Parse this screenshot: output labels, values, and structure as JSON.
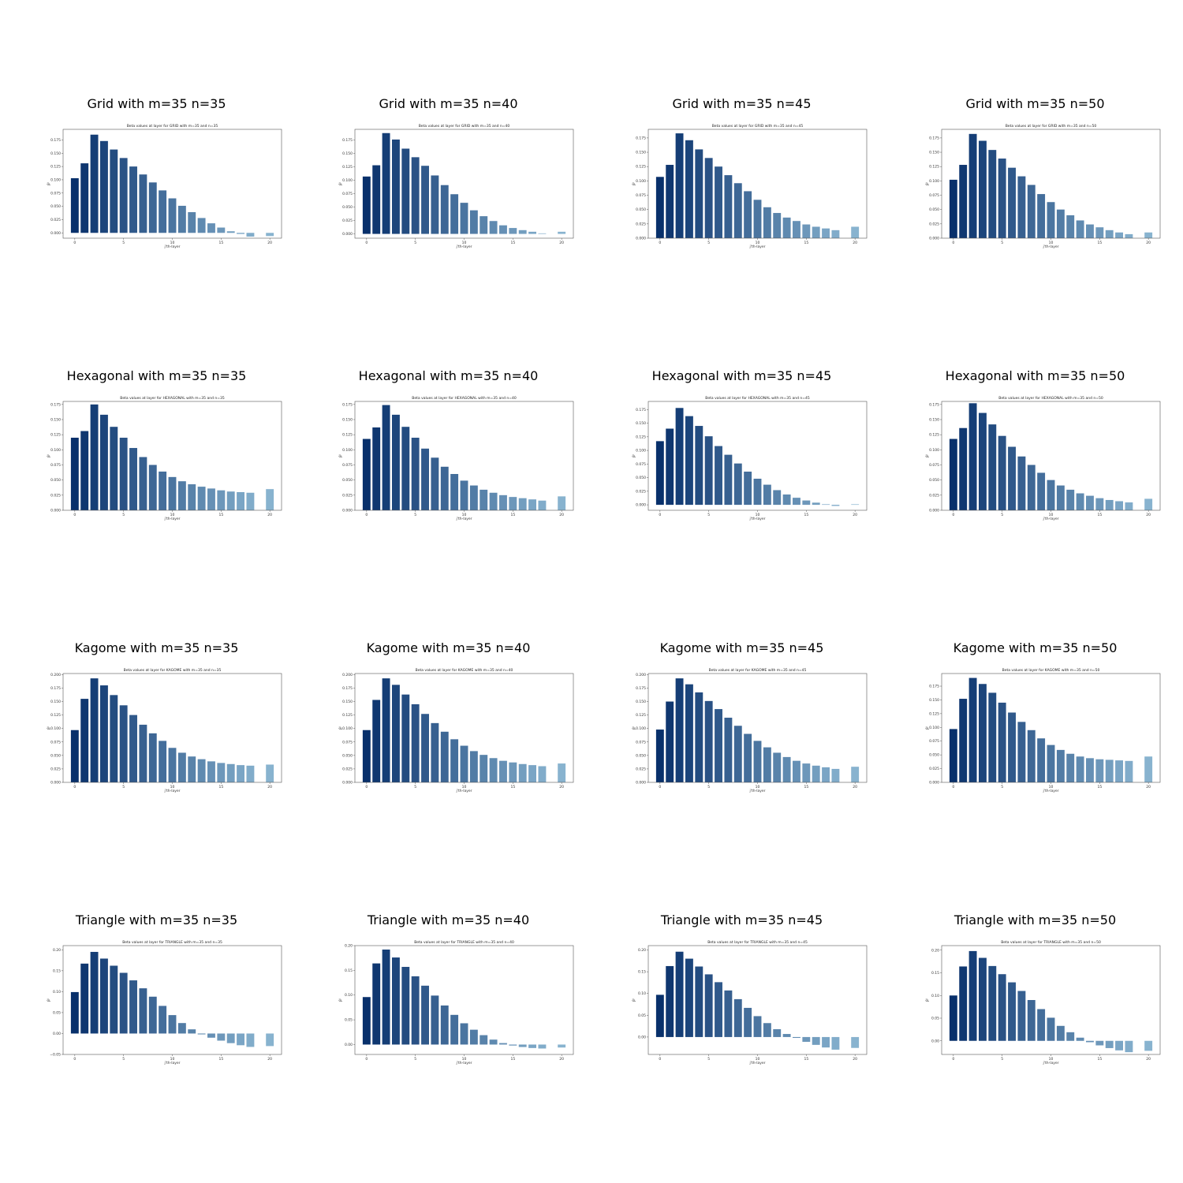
{
  "chart_data": [
    {
      "type": "bar",
      "title": "Grid with m=35 n=35",
      "subtitle": "Beta values at layer for GRID with m=35 and n=35",
      "xlabel": "j'th-layer",
      "ylabel": "βʲ",
      "ylim": [
        -0.01,
        0.195
      ],
      "yticks": [
        "0.000",
        "0.025",
        "0.050",
        "0.075",
        "0.100",
        "0.125",
        "0.150",
        "0.175"
      ],
      "yticks_v": [
        0,
        0.025,
        0.05,
        0.075,
        0.1,
        0.125,
        0.15,
        0.175
      ],
      "xticks": [
        "0",
        "5",
        "10",
        "15",
        "20"
      ],
      "x": [
        0,
        1,
        2,
        3,
        4,
        5,
        6,
        7,
        8,
        9,
        10,
        11,
        12,
        13,
        14,
        15,
        16,
        17,
        18,
        20
      ],
      "values": [
        0.103,
        0.131,
        0.185,
        0.173,
        0.157,
        0.141,
        0.125,
        0.11,
        0.095,
        0.08,
        0.065,
        0.051,
        0.039,
        0.028,
        0.018,
        0.01,
        0.003,
        -0.002,
        -0.007,
        -0.006
      ]
    },
    {
      "type": "bar",
      "title": "Grid with m=35 n=40",
      "subtitle": "Beta values at layer for GRID with m=35 and n=40",
      "xlabel": "j'th-layer",
      "ylabel": "βʲ",
      "ylim": [
        -0.008,
        0.195
      ],
      "yticks": [
        "0.000",
        "0.025",
        "0.050",
        "0.075",
        "0.100",
        "0.125",
        "0.150",
        "0.175"
      ],
      "yticks_v": [
        0,
        0.025,
        0.05,
        0.075,
        0.1,
        0.125,
        0.15,
        0.175
      ],
      "xticks": [
        "0",
        "5",
        "10",
        "15",
        "20"
      ],
      "x": [
        0,
        1,
        2,
        3,
        4,
        5,
        6,
        7,
        8,
        9,
        10,
        11,
        12,
        13,
        14,
        15,
        16,
        17,
        18,
        20
      ],
      "values": [
        0.107,
        0.128,
        0.188,
        0.176,
        0.159,
        0.143,
        0.127,
        0.109,
        0.091,
        0.074,
        0.058,
        0.044,
        0.033,
        0.024,
        0.016,
        0.011,
        0.007,
        0.004,
        0.001,
        0.004
      ]
    },
    {
      "type": "bar",
      "title": "Grid with m=35 n=45",
      "subtitle": "Beta values at layer for GRID with m=35 and n=45",
      "xlabel": "j'th-layer",
      "ylabel": "βʲ",
      "ylim": [
        0,
        0.19
      ],
      "yticks": [
        "0.000",
        "0.025",
        "0.050",
        "0.075",
        "0.100",
        "0.125",
        "0.150",
        "0.175"
      ],
      "yticks_v": [
        0,
        0.025,
        0.05,
        0.075,
        0.1,
        0.125,
        0.15,
        0.175
      ],
      "xticks": [
        "0",
        "5",
        "10",
        "15",
        "20"
      ],
      "x": [
        0,
        1,
        2,
        3,
        4,
        5,
        6,
        7,
        8,
        9,
        10,
        11,
        12,
        13,
        14,
        15,
        16,
        17,
        18,
        20
      ],
      "values": [
        0.107,
        0.128,
        0.183,
        0.171,
        0.155,
        0.14,
        0.125,
        0.11,
        0.096,
        0.082,
        0.067,
        0.054,
        0.044,
        0.036,
        0.03,
        0.024,
        0.02,
        0.017,
        0.014,
        0.02
      ]
    },
    {
      "type": "bar",
      "title": "Grid with m=35 n=50",
      "subtitle": "Beta values at layer for GRID with m=35 and n=50",
      "xlabel": "j'th-layer",
      "ylabel": "βʲ",
      "ylim": [
        0,
        0.19
      ],
      "yticks": [
        "0.000",
        "0.025",
        "0.050",
        "0.075",
        "0.100",
        "0.125",
        "0.150",
        "0.175"
      ],
      "yticks_v": [
        0,
        0.025,
        0.05,
        0.075,
        0.1,
        0.125,
        0.15,
        0.175
      ],
      "xticks": [
        "0",
        "5",
        "10",
        "15",
        "20"
      ],
      "x": [
        0,
        1,
        2,
        3,
        4,
        5,
        6,
        7,
        8,
        9,
        10,
        11,
        12,
        13,
        14,
        15,
        16,
        17,
        18,
        20
      ],
      "values": [
        0.102,
        0.128,
        0.182,
        0.17,
        0.154,
        0.139,
        0.123,
        0.108,
        0.093,
        0.077,
        0.063,
        0.05,
        0.04,
        0.031,
        0.024,
        0.019,
        0.014,
        0.01,
        0.007,
        0.01
      ]
    },
    {
      "type": "bar",
      "title": "Hexagonal with m=35 n=35",
      "subtitle": "Beta values at layer for HEXAGONAL with m=35 and n=35",
      "xlabel": "j'th-layer",
      "ylabel": "βʲ",
      "ylim": [
        0,
        0.18
      ],
      "yticks": [
        "0.000",
        "0.025",
        "0.050",
        "0.075",
        "0.100",
        "0.125",
        "0.150",
        "0.175"
      ],
      "yticks_v": [
        0,
        0.025,
        0.05,
        0.075,
        0.1,
        0.125,
        0.15,
        0.175
      ],
      "xticks": [
        "0",
        "5",
        "10",
        "15",
        "20"
      ],
      "x": [
        0,
        1,
        2,
        3,
        4,
        5,
        6,
        7,
        8,
        9,
        10,
        11,
        12,
        13,
        14,
        15,
        16,
        17,
        18,
        20
      ],
      "values": [
        0.12,
        0.131,
        0.175,
        0.158,
        0.138,
        0.12,
        0.103,
        0.088,
        0.075,
        0.064,
        0.055,
        0.048,
        0.043,
        0.039,
        0.036,
        0.033,
        0.031,
        0.03,
        0.029,
        0.035
      ]
    },
    {
      "type": "bar",
      "title": "Hexagonal with m=35 n=40",
      "subtitle": "Beta values at layer for HEXAGONAL with m=35 and n=40",
      "xlabel": "j'th-layer",
      "ylabel": "βʲ",
      "ylim": [
        0,
        0.18
      ],
      "yticks": [
        "0.000",
        "0.025",
        "0.050",
        "0.075",
        "0.100",
        "0.125",
        "0.150",
        "0.175"
      ],
      "yticks_v": [
        0,
        0.025,
        0.05,
        0.075,
        0.1,
        0.125,
        0.15,
        0.175
      ],
      "xticks": [
        "0",
        "5",
        "10",
        "15",
        "20"
      ],
      "x": [
        0,
        1,
        2,
        3,
        4,
        5,
        6,
        7,
        8,
        9,
        10,
        11,
        12,
        13,
        14,
        15,
        16,
        17,
        18,
        20
      ],
      "values": [
        0.118,
        0.137,
        0.174,
        0.158,
        0.138,
        0.12,
        0.102,
        0.087,
        0.072,
        0.06,
        0.049,
        0.041,
        0.034,
        0.029,
        0.025,
        0.022,
        0.02,
        0.018,
        0.016,
        0.023
      ]
    },
    {
      "type": "bar",
      "title": "Hexagonal with m=35 n=45",
      "subtitle": "Beta values at layer for HEXAGONAL with m=35 and n=45",
      "xlabel": "j'th-layer",
      "ylabel": "βʲ",
      "ylim": [
        -0.01,
        0.19
      ],
      "yticks": [
        "0.000",
        "0.025",
        "0.050",
        "0.075",
        "0.100",
        "0.125",
        "0.150",
        "0.175"
      ],
      "yticks_v": [
        0,
        0.025,
        0.05,
        0.075,
        0.1,
        0.125,
        0.15,
        0.175
      ],
      "xticks": [
        "0",
        "5",
        "10",
        "15",
        "20"
      ],
      "x": [
        0,
        1,
        2,
        3,
        4,
        5,
        6,
        7,
        8,
        9,
        10,
        11,
        12,
        13,
        14,
        15,
        16,
        17,
        18,
        20
      ],
      "values": [
        0.117,
        0.14,
        0.178,
        0.163,
        0.145,
        0.126,
        0.108,
        0.092,
        0.076,
        0.061,
        0.048,
        0.037,
        0.027,
        0.019,
        0.013,
        0.008,
        0.004,
        0.001,
        -0.002,
        0.001
      ]
    },
    {
      "type": "bar",
      "title": "Hexagonal with m=35 n=50",
      "subtitle": "Beta values at layer for HEXAGONAL with m=35 and n=50",
      "xlabel": "j'th-layer",
      "ylabel": "βʲ",
      "ylim": [
        0,
        0.18
      ],
      "yticks": [
        "0.000",
        "0.025",
        "0.050",
        "0.075",
        "0.100",
        "0.125",
        "0.150",
        "0.175"
      ],
      "yticks_v": [
        0,
        0.025,
        0.05,
        0.075,
        0.1,
        0.125,
        0.15,
        0.175
      ],
      "xticks": [
        "0",
        "5",
        "10",
        "15",
        "20"
      ],
      "x": [
        0,
        1,
        2,
        3,
        4,
        5,
        6,
        7,
        8,
        9,
        10,
        11,
        12,
        13,
        14,
        15,
        16,
        17,
        18,
        20
      ],
      "values": [
        0.118,
        0.136,
        0.177,
        0.161,
        0.142,
        0.123,
        0.105,
        0.089,
        0.075,
        0.062,
        0.05,
        0.041,
        0.034,
        0.028,
        0.024,
        0.02,
        0.017,
        0.015,
        0.013,
        0.019
      ]
    },
    {
      "type": "bar",
      "title": "Kagome with m=35 n=35",
      "subtitle": "Beta values at layer for KAGOME with m=35 and n=35",
      "xlabel": "j'th-layer",
      "ylabel": "βʲ",
      "ylim": [
        0,
        0.202
      ],
      "yticks": [
        "0.000",
        "0.025",
        "0.050",
        "0.075",
        "0.100",
        "0.125",
        "0.150",
        "0.175",
        "0.200"
      ],
      "yticks_v": [
        0,
        0.025,
        0.05,
        0.075,
        0.1,
        0.125,
        0.15,
        0.175,
        0.2
      ],
      "xticks": [
        "0",
        "5",
        "10",
        "15",
        "20"
      ],
      "x": [
        0,
        1,
        2,
        3,
        4,
        5,
        6,
        7,
        8,
        9,
        10,
        11,
        12,
        13,
        14,
        15,
        16,
        17,
        18,
        20
      ],
      "values": [
        0.097,
        0.155,
        0.193,
        0.18,
        0.162,
        0.143,
        0.125,
        0.107,
        0.091,
        0.077,
        0.064,
        0.055,
        0.048,
        0.043,
        0.039,
        0.036,
        0.034,
        0.032,
        0.031,
        0.033
      ]
    },
    {
      "type": "bar",
      "title": "Kagome with m=35 n=40",
      "subtitle": "Beta values at layer for KAGOME with m=35 and n=40",
      "xlabel": "j'th-layer",
      "ylabel": "βʲ",
      "ylim": [
        0,
        0.202
      ],
      "yticks": [
        "0.000",
        "0.025",
        "0.050",
        "0.075",
        "0.100",
        "0.125",
        "0.150",
        "0.175",
        "0.200"
      ],
      "yticks_v": [
        0,
        0.025,
        0.05,
        0.075,
        0.1,
        0.125,
        0.15,
        0.175,
        0.2
      ],
      "xticks": [
        "0",
        "5",
        "10",
        "15",
        "20"
      ],
      "x": [
        0,
        1,
        2,
        3,
        4,
        5,
        6,
        7,
        8,
        9,
        10,
        11,
        12,
        13,
        14,
        15,
        16,
        17,
        18,
        20
      ],
      "values": [
        0.097,
        0.153,
        0.193,
        0.181,
        0.163,
        0.145,
        0.127,
        0.11,
        0.094,
        0.08,
        0.068,
        0.058,
        0.051,
        0.045,
        0.04,
        0.037,
        0.034,
        0.032,
        0.03,
        0.035
      ]
    },
    {
      "type": "bar",
      "title": "Kagome with m=35 n=45",
      "subtitle": "Beta values at layer for KAGOME with m=35 and n=45",
      "xlabel": "j'th-layer",
      "ylabel": "βʲ",
      "ylim": [
        0,
        0.202
      ],
      "yticks": [
        "0.000",
        "0.025",
        "0.050",
        "0.075",
        "0.100",
        "0.125",
        "0.150",
        "0.175",
        "0.200"
      ],
      "yticks_v": [
        0,
        0.025,
        0.05,
        0.075,
        0.1,
        0.125,
        0.15,
        0.175,
        0.2
      ],
      "xticks": [
        "0",
        "5",
        "10",
        "15",
        "20"
      ],
      "x": [
        0,
        1,
        2,
        3,
        4,
        5,
        6,
        7,
        8,
        9,
        10,
        11,
        12,
        13,
        14,
        15,
        16,
        17,
        18,
        20
      ],
      "values": [
        0.098,
        0.15,
        0.193,
        0.182,
        0.167,
        0.151,
        0.136,
        0.12,
        0.105,
        0.09,
        0.077,
        0.065,
        0.055,
        0.047,
        0.04,
        0.035,
        0.031,
        0.028,
        0.025,
        0.029
      ]
    },
    {
      "type": "bar",
      "title": "Kagome with m=35 n=50",
      "subtitle": "Beta values at layer for KAGOME with m=35 and n=50",
      "xlabel": "j'th-layer",
      "ylabel": "βʲ",
      "ylim": [
        0,
        0.198
      ],
      "yticks": [
        "0.000",
        "0.025",
        "0.050",
        "0.075",
        "0.100",
        "0.125",
        "0.150",
        "0.175"
      ],
      "yticks_v": [
        0,
        0.025,
        0.05,
        0.075,
        0.1,
        0.125,
        0.15,
        0.175
      ],
      "xticks": [
        "0",
        "5",
        "10",
        "15",
        "20"
      ],
      "x": [
        0,
        1,
        2,
        3,
        4,
        5,
        6,
        7,
        8,
        9,
        10,
        11,
        12,
        13,
        14,
        15,
        16,
        17,
        18,
        20
      ],
      "values": [
        0.097,
        0.152,
        0.19,
        0.179,
        0.163,
        0.145,
        0.127,
        0.11,
        0.095,
        0.08,
        0.068,
        0.059,
        0.052,
        0.047,
        0.044,
        0.042,
        0.041,
        0.04,
        0.039,
        0.047
      ]
    },
    {
      "type": "bar",
      "title": "Triangle with m=35 n=35",
      "subtitle": "Beta values at layer for TRIANGLE with m=35 and n=35",
      "xlabel": "j'th-layer",
      "ylabel": "βʲ",
      "ylim": [
        -0.05,
        0.21
      ],
      "yticks": [
        "−0.05",
        "0.00",
        "0.05",
        "0.10",
        "0.15",
        "0.20"
      ],
      "yticks_v": [
        -0.05,
        0,
        0.05,
        0.1,
        0.15,
        0.2
      ],
      "xticks": [
        "0",
        "5",
        "10",
        "15",
        "20"
      ],
      "x": [
        0,
        1,
        2,
        3,
        4,
        5,
        6,
        7,
        8,
        9,
        10,
        11,
        12,
        13,
        14,
        15,
        16,
        17,
        18,
        20
      ],
      "values": [
        0.099,
        0.167,
        0.195,
        0.179,
        0.162,
        0.145,
        0.127,
        0.108,
        0.088,
        0.066,
        0.044,
        0.025,
        0.01,
        -0.002,
        -0.01,
        -0.017,
        -0.023,
        -0.028,
        -0.032,
        -0.03
      ]
    },
    {
      "type": "bar",
      "title": "Triangle with m=35 n=40",
      "subtitle": "Beta values at layer for TRIANGLE with m=35 and n=40",
      "xlabel": "j'th-layer",
      "ylabel": "βʲ",
      "ylim": [
        -0.02,
        0.2
      ],
      "yticks": [
        "0.00",
        "0.05",
        "0.10",
        "0.15",
        "0.20"
      ],
      "yticks_v": [
        0,
        0.05,
        0.1,
        0.15,
        0.2
      ],
      "xticks": [
        "0",
        "5",
        "10",
        "15",
        "20"
      ],
      "x": [
        0,
        1,
        2,
        3,
        4,
        5,
        6,
        7,
        8,
        9,
        10,
        11,
        12,
        13,
        14,
        15,
        16,
        17,
        18,
        20
      ],
      "values": [
        0.096,
        0.164,
        0.192,
        0.176,
        0.157,
        0.138,
        0.119,
        0.099,
        0.079,
        0.06,
        0.043,
        0.03,
        0.019,
        0.01,
        0.003,
        -0.002,
        -0.005,
        -0.007,
        -0.008,
        -0.006
      ]
    },
    {
      "type": "bar",
      "title": "Triangle with m=35 n=45",
      "subtitle": "Beta values at layer for TRIANGLE with m=35 and n=45",
      "xlabel": "j'th-layer",
      "ylabel": "βʲ",
      "ylim": [
        -0.04,
        0.21
      ],
      "yticks": [
        "0.00",
        "0.05",
        "0.10",
        "0.15",
        "0.20"
      ],
      "yticks_v": [
        0,
        0.05,
        0.1,
        0.15,
        0.2
      ],
      "xticks": [
        "0",
        "5",
        "10",
        "15",
        "20"
      ],
      "x": [
        0,
        1,
        2,
        3,
        4,
        5,
        6,
        7,
        8,
        9,
        10,
        11,
        12,
        13,
        14,
        15,
        16,
        17,
        18,
        20
      ],
      "values": [
        0.097,
        0.163,
        0.196,
        0.18,
        0.162,
        0.144,
        0.126,
        0.107,
        0.087,
        0.067,
        0.048,
        0.032,
        0.018,
        0.007,
        -0.002,
        -0.011,
        -0.018,
        -0.024,
        -0.029,
        -0.025
      ]
    },
    {
      "type": "bar",
      "title": "Triangle with m=35 n=50",
      "subtitle": "Beta values at layer for TRIANGLE with m=35 and n=50",
      "xlabel": "j'th-layer",
      "ylabel": "βʲ",
      "ylim": [
        -0.03,
        0.21
      ],
      "yticks": [
        "0.00",
        "0.05",
        "0.10",
        "0.15",
        "0.20"
      ],
      "yticks_v": [
        0,
        0.05,
        0.1,
        0.15,
        0.2
      ],
      "xticks": [
        "0",
        "5",
        "10",
        "15",
        "20"
      ],
      "x": [
        0,
        1,
        2,
        3,
        4,
        5,
        6,
        7,
        8,
        9,
        10,
        11,
        12,
        13,
        14,
        15,
        16,
        17,
        18,
        20
      ],
      "values": [
        0.1,
        0.164,
        0.198,
        0.183,
        0.165,
        0.147,
        0.129,
        0.11,
        0.09,
        0.07,
        0.051,
        0.033,
        0.019,
        0.007,
        -0.003,
        -0.01,
        -0.016,
        -0.021,
        -0.025,
        -0.022
      ]
    }
  ]
}
